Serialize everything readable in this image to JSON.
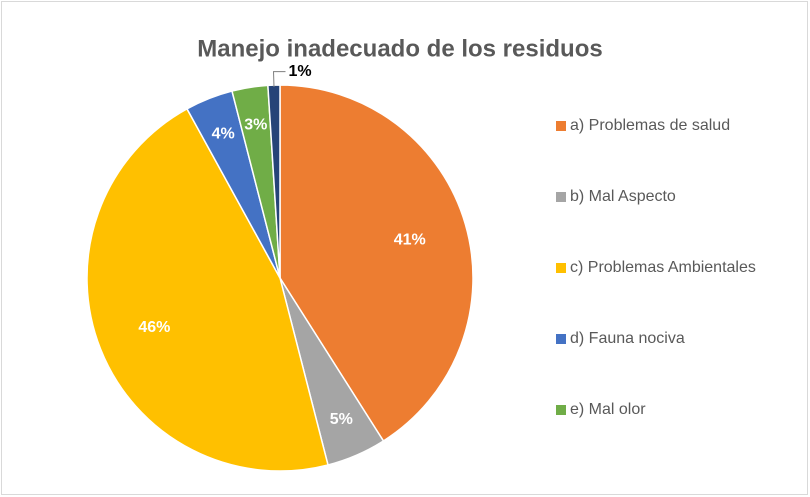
{
  "chart_data": {
    "type": "pie",
    "title": "Manejo inadecuado de los residuos",
    "categories": [
      "a) Problemas de salud",
      "b) Mal Aspecto",
      "c) Problemas Ambientales",
      "d) Fauna nociva",
      "e) Mal olor",
      null
    ],
    "values": [
      41,
      5,
      46,
      4,
      3,
      1
    ],
    "value_labels": [
      "41%",
      "5%",
      "46%",
      "4%",
      "3%",
      "1%"
    ],
    "colors": [
      "#ed7d31",
      "#a5a5a5",
      "#ffc000",
      "#4472c4",
      "#70ad47",
      "#264478"
    ],
    "legend": "right"
  }
}
